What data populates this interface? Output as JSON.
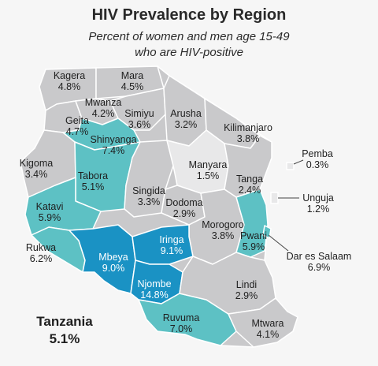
{
  "title": "HIV Prevalence by Region",
  "subtitle_line1": "Percent of women and men age 15-49",
  "subtitle_line2": "who are HIV-positive",
  "national": {
    "name": "Tanzania",
    "value": "5.1%"
  },
  "colors": {
    "low": "#c9c9cb",
    "lowest": "#e8e8e9",
    "medium": "#5dc1c4",
    "high": "#1a92c4",
    "border": "#ffffff",
    "island_box": "#8fd0d3"
  },
  "regions": [
    {
      "id": "kagera",
      "name": "Kagera",
      "value": "4.8%",
      "level": "low"
    },
    {
      "id": "mara",
      "name": "Mara",
      "value": "4.5%",
      "level": "low"
    },
    {
      "id": "mwanza",
      "name": "Mwanza",
      "value": "4.2%",
      "level": "low"
    },
    {
      "id": "geita",
      "name": "Geita",
      "value": "4.7%",
      "level": "low"
    },
    {
      "id": "simiyu",
      "name": "Simiyu",
      "value": "3.6%",
      "level": "low"
    },
    {
      "id": "arusha",
      "name": "Arusha",
      "value": "3.2%",
      "level": "low"
    },
    {
      "id": "kilimanjaro",
      "name": "Kilimanjaro",
      "value": "3.8%",
      "level": "low"
    },
    {
      "id": "shinyanga",
      "name": "Shinyanga",
      "value": "7.4%",
      "level": "medium"
    },
    {
      "id": "kigoma",
      "name": "Kigoma",
      "value": "3.4%",
      "level": "low"
    },
    {
      "id": "tabora",
      "name": "Tabora",
      "value": "5.1%",
      "level": "medium"
    },
    {
      "id": "manyara",
      "name": "Manyara",
      "value": "1.5%",
      "level": "lowest"
    },
    {
      "id": "tanga",
      "name": "Tanga",
      "value": "2.4%",
      "level": "low"
    },
    {
      "id": "pemba",
      "name": "Pemba",
      "value": "0.3%",
      "level": "lowest"
    },
    {
      "id": "unguja",
      "name": "Unguja",
      "value": "1.2%",
      "level": "lowest"
    },
    {
      "id": "singida",
      "name": "Singida",
      "value": "3.3%",
      "level": "low"
    },
    {
      "id": "dodoma",
      "name": "Dodoma",
      "value": "2.9%",
      "level": "low"
    },
    {
      "id": "katavi",
      "name": "Katavi",
      "value": "5.9%",
      "level": "medium"
    },
    {
      "id": "morogoro",
      "name": "Morogoro",
      "value": "3.8%",
      "level": "low"
    },
    {
      "id": "pwani",
      "name": "Pwani",
      "value": "5.9%",
      "level": "medium"
    },
    {
      "id": "rukwa",
      "name": "Rukwa",
      "value": "6.2%",
      "level": "medium"
    },
    {
      "id": "iringa",
      "name": "Iringa",
      "value": "9.1%",
      "level": "high"
    },
    {
      "id": "mbeya",
      "name": "Mbeya",
      "value": "9.0%",
      "level": "high"
    },
    {
      "id": "njombe",
      "name": "Njombe",
      "value": "14.8%",
      "level": "high"
    },
    {
      "id": "dar-es-salaam",
      "name": "Dar es Salaam",
      "value": "6.9%",
      "level": "medium"
    },
    {
      "id": "lindi",
      "name": "Lindi",
      "value": "2.9%",
      "level": "low"
    },
    {
      "id": "ruvuma",
      "name": "Ruvuma",
      "value": "7.0%",
      "level": "medium"
    },
    {
      "id": "mtwara",
      "name": "Mtwara",
      "value": "4.1%",
      "level": "low"
    }
  ]
}
